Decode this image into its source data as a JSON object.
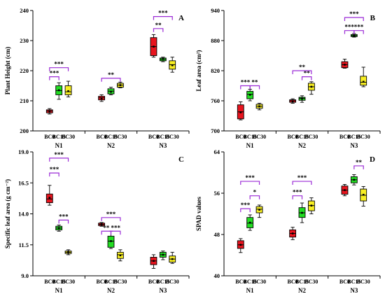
{
  "chart_data": [
    {
      "type": "box",
      "panel_label": "A",
      "ylabel": "Plant Height (cm)",
      "ylim": [
        200,
        240
      ],
      "yticks": [
        200,
        210,
        220,
        230,
        240
      ],
      "groups": [
        "N1",
        "N2",
        "N3"
      ],
      "categories": [
        "BC0",
        "BC15",
        "BC30"
      ],
      "series_colors": {
        "BC0": "#e8141e",
        "BC15": "#22dd22",
        "BC30": "#f7ee22"
      },
      "boxes": [
        {
          "group": "N1",
          "category": "BC0",
          "min": 205.6,
          "q1": 206.0,
          "median": 206.6,
          "q3": 207.0,
          "max": 207.4,
          "mean": 206.5
        },
        {
          "group": "N1",
          "category": "BC15",
          "min": 210.5,
          "q1": 212.0,
          "median": 213.4,
          "q3": 215.0,
          "max": 216.0,
          "mean": 213.5
        },
        {
          "group": "N1",
          "category": "BC30",
          "min": 211.3,
          "q1": 212.0,
          "median": 213.0,
          "q3": 215.0,
          "max": 216.5,
          "mean": 213.2
        },
        {
          "group": "N2",
          "category": "BC0",
          "min": 209.8,
          "q1": 210.3,
          "median": 211.0,
          "q3": 211.5,
          "max": 212.0,
          "mean": 210.8
        },
        {
          "group": "N2",
          "category": "BC15",
          "min": 212.0,
          "q1": 212.3,
          "median": 213.2,
          "q3": 214.0,
          "max": 214.5,
          "mean": 213.0
        },
        {
          "group": "N2",
          "category": "BC30",
          "min": 214.3,
          "q1": 214.5,
          "median": 215.2,
          "q3": 215.8,
          "max": 216.2,
          "mean": 215.2
        },
        {
          "group": "N3",
          "category": "BC0",
          "min": 224.5,
          "q1": 225.0,
          "median": 228.0,
          "q3": 231.0,
          "max": 232.0,
          "mean": 228.0
        },
        {
          "group": "N3",
          "category": "BC15",
          "min": 223.0,
          "q1": 223.3,
          "median": 223.8,
          "q3": 224.2,
          "max": 224.5,
          "mean": 223.9
        },
        {
          "group": "N3",
          "category": "BC30",
          "min": 219.5,
          "q1": 220.5,
          "median": 222.0,
          "q3": 223.3,
          "max": 224.5,
          "mean": 221.8
        }
      ],
      "significance": [
        {
          "group": "N1",
          "from": "BC0",
          "to": "BC15",
          "label": "***",
          "level": 218
        },
        {
          "group": "N1",
          "from": "BC0",
          "to": "BC30",
          "label": "***",
          "level": 221
        },
        {
          "group": "N2",
          "from": "BC0",
          "to": "BC30",
          "label": "**",
          "level": 217.5
        },
        {
          "group": "N3",
          "from": "BC0",
          "to": "BC15",
          "label": "**",
          "level": 234
        },
        {
          "group": "N3",
          "from": "BC0",
          "to": "BC30",
          "label": "***",
          "level": 238
        }
      ]
    },
    {
      "type": "box",
      "panel_label": "B",
      "ylabel": "Leaf area (cm²)",
      "ylim": [
        700,
        940
      ],
      "yticks": [
        700,
        760,
        820,
        880,
        940
      ],
      "groups": [
        "N1",
        "N2",
        "N3"
      ],
      "categories": [
        "BC0",
        "BC15",
        "BC30"
      ],
      "series_colors": {
        "BC0": "#e8141e",
        "BC15": "#22dd22",
        "BC30": "#f7ee22"
      },
      "boxes": [
        {
          "group": "N1",
          "category": "BC0",
          "min": 722,
          "q1": 724,
          "median": 738,
          "q3": 752,
          "max": 758,
          "mean": 737
        },
        {
          "group": "N1",
          "category": "BC15",
          "min": 760,
          "q1": 764,
          "median": 773,
          "q3": 779,
          "max": 783,
          "mean": 772
        },
        {
          "group": "N1",
          "category": "BC30",
          "min": 742,
          "q1": 745,
          "median": 749,
          "q3": 753,
          "max": 755,
          "mean": 749
        },
        {
          "group": "N2",
          "category": "BC0",
          "min": 755,
          "q1": 757,
          "median": 760,
          "q3": 762,
          "max": 764,
          "mean": 759
        },
        {
          "group": "N2",
          "category": "BC15",
          "min": 757,
          "q1": 761,
          "median": 765,
          "q3": 767,
          "max": 770,
          "mean": 764
        },
        {
          "group": "N2",
          "category": "BC30",
          "min": 773,
          "q1": 781,
          "median": 788,
          "q3": 795,
          "max": 798,
          "mean": 788
        },
        {
          "group": "N3",
          "category": "BC0",
          "min": 825,
          "q1": 826,
          "median": 832,
          "q3": 838,
          "max": 843,
          "mean": 832
        },
        {
          "group": "N3",
          "category": "BC15",
          "min": 887,
          "q1": 888,
          "median": 890,
          "q3": 892,
          "max": 894,
          "mean": 890
        },
        {
          "group": "N3",
          "category": "BC30",
          "min": 788,
          "q1": 791,
          "median": 797,
          "q3": 809,
          "max": 827,
          "mean": 798
        }
      ],
      "significance": [
        {
          "group": "N1",
          "from": "BC0",
          "to": "BC15",
          "label": "***",
          "level": 790
        },
        {
          "group": "N1",
          "from": "BC15",
          "to": "BC30",
          "label": "**",
          "level": 790
        },
        {
          "group": "N2",
          "from": "BC15",
          "to": "BC30",
          "label": "**",
          "level": 808
        },
        {
          "group": "N2",
          "from": "BC0",
          "to": "BC30",
          "label": "**",
          "level": 820
        },
        {
          "group": "N3",
          "from": "BC0",
          "to": "BC15",
          "label": "***",
          "level": 900
        },
        {
          "group": "N3",
          "from": "BC15",
          "to": "BC30",
          "label": "***",
          "level": 900
        },
        {
          "group": "N3",
          "from": "BC0",
          "to": "BC30",
          "label": "***",
          "level": 926
        }
      ]
    },
    {
      "type": "box",
      "panel_label": "C",
      "ylabel": "Specific leaf area (g cm⁻²)",
      "ylim": [
        9.0,
        19.0
      ],
      "yticks": [
        9.0,
        11.5,
        14.0,
        16.5,
        19.0
      ],
      "tick_decimals": 1,
      "groups": [
        "N1",
        "N2",
        "N3"
      ],
      "categories": [
        "BC0",
        "BC15",
        "BC30"
      ],
      "series_colors": {
        "BC0": "#e8141e",
        "BC15": "#22dd22",
        "BC30": "#f7ee22"
      },
      "boxes": [
        {
          "group": "N1",
          "category": "BC0",
          "min": 14.7,
          "q1": 14.9,
          "median": 15.2,
          "q3": 15.6,
          "max": 16.3,
          "mean": 15.3
        },
        {
          "group": "N1",
          "category": "BC15",
          "min": 12.6,
          "q1": 12.7,
          "median": 12.85,
          "q3": 13.0,
          "max": 13.1,
          "mean": 12.85
        },
        {
          "group": "N1",
          "category": "BC30",
          "min": 10.7,
          "q1": 10.8,
          "median": 10.9,
          "q3": 11.0,
          "max": 11.1,
          "mean": 10.9
        },
        {
          "group": "N2",
          "category": "BC0",
          "min": 13.0,
          "q1": 13.05,
          "median": 13.15,
          "q3": 13.25,
          "max": 13.3,
          "mean": 13.15
        },
        {
          "group": "N2",
          "category": "BC15",
          "min": 11.2,
          "q1": 11.3,
          "median": 11.8,
          "q3": 12.2,
          "max": 12.6,
          "mean": 11.8
        },
        {
          "group": "N2",
          "category": "BC30",
          "min": 10.2,
          "q1": 10.4,
          "median": 10.7,
          "q3": 10.9,
          "max": 11.1,
          "mean": 10.65
        },
        {
          "group": "N3",
          "category": "BC0",
          "min": 9.6,
          "q1": 9.9,
          "median": 10.2,
          "q3": 10.5,
          "max": 10.7,
          "mean": 10.2
        },
        {
          "group": "N3",
          "category": "BC15",
          "min": 10.3,
          "q1": 10.5,
          "median": 10.7,
          "q3": 10.9,
          "max": 11.0,
          "mean": 10.7
        },
        {
          "group": "N3",
          "category": "BC30",
          "min": 10.0,
          "q1": 10.1,
          "median": 10.35,
          "q3": 10.6,
          "max": 10.9,
          "mean": 10.35
        }
      ],
      "significance": [
        {
          "group": "N1",
          "from": "BC0",
          "to": "BC15",
          "label": "***",
          "level": 17.3
        },
        {
          "group": "N1",
          "from": "BC0",
          "to": "BC30",
          "label": "***",
          "level": 18.5
        },
        {
          "group": "N1",
          "from": "BC15",
          "to": "BC30",
          "label": "***",
          "level": 13.5
        },
        {
          "group": "N2",
          "from": "BC0",
          "to": "BC15",
          "label": "**",
          "level": 12.6
        },
        {
          "group": "N2",
          "from": "BC15",
          "to": "BC30",
          "label": "***",
          "level": 12.6
        },
        {
          "group": "N2",
          "from": "BC0",
          "to": "BC30",
          "label": "***",
          "level": 13.7
        }
      ]
    },
    {
      "type": "box",
      "panel_label": "D",
      "ylabel": "SPAD values",
      "ylim": [
        40,
        64
      ],
      "yticks": [
        40,
        48,
        56,
        64
      ],
      "groups": [
        "N1",
        "N2",
        "N3"
      ],
      "categories": [
        "BC0",
        "BC15",
        "BC30"
      ],
      "series_colors": {
        "BC0": "#e8141e",
        "BC15": "#22dd22",
        "BC30": "#f7ee22"
      },
      "boxes": [
        {
          "group": "N1",
          "category": "BC0",
          "min": 44.5,
          "q1": 45.3,
          "median": 46.0,
          "q3": 46.8,
          "max": 47.2,
          "mean": 46.0
        },
        {
          "group": "N1",
          "category": "BC15",
          "min": 48.8,
          "q1": 49.3,
          "median": 50.2,
          "q3": 51.3,
          "max": 51.8,
          "mean": 50.3
        },
        {
          "group": "N1",
          "category": "BC30",
          "min": 51.3,
          "q1": 52.2,
          "median": 52.9,
          "q3": 53.4,
          "max": 53.7,
          "mean": 52.8
        },
        {
          "group": "N2",
          "category": "BC0",
          "min": 47.0,
          "q1": 47.5,
          "median": 48.2,
          "q3": 48.9,
          "max": 49.4,
          "mean": 48.2
        },
        {
          "group": "N2",
          "category": "BC15",
          "min": 50.3,
          "q1": 51.3,
          "median": 52.2,
          "q3": 53.2,
          "max": 54.1,
          "mean": 52.2
        },
        {
          "group": "N2",
          "category": "BC30",
          "min": 52.0,
          "q1": 52.6,
          "median": 53.6,
          "q3": 54.5,
          "max": 55.1,
          "mean": 53.6
        },
        {
          "group": "N3",
          "category": "BC0",
          "min": 55.5,
          "q1": 55.8,
          "median": 56.6,
          "q3": 57.4,
          "max": 57.7,
          "mean": 56.6
        },
        {
          "group": "N3",
          "category": "BC15",
          "min": 57.6,
          "q1": 58.0,
          "median": 58.6,
          "q3": 59.2,
          "max": 59.6,
          "mean": 58.6
        },
        {
          "group": "N3",
          "category": "BC30",
          "min": 53.5,
          "q1": 54.5,
          "median": 55.6,
          "q3": 56.8,
          "max": 57.3,
          "mean": 55.7
        }
      ],
      "significance": [
        {
          "group": "N1",
          "from": "BC0",
          "to": "BC15",
          "label": "***",
          "level": 53.0
        },
        {
          "group": "N1",
          "from": "BC15",
          "to": "BC30",
          "label": "*",
          "level": 55.5
        },
        {
          "group": "N1",
          "from": "BC0",
          "to": "BC30",
          "label": "***",
          "level": 58.3
        },
        {
          "group": "N2",
          "from": "BC0",
          "to": "BC15",
          "label": "***",
          "level": 55.5
        },
        {
          "group": "N2",
          "from": "BC0",
          "to": "BC30",
          "label": "***",
          "level": 58.3
        },
        {
          "group": "N3",
          "from": "BC15",
          "to": "BC30",
          "label": "**",
          "level": 61.3
        }
      ]
    }
  ]
}
